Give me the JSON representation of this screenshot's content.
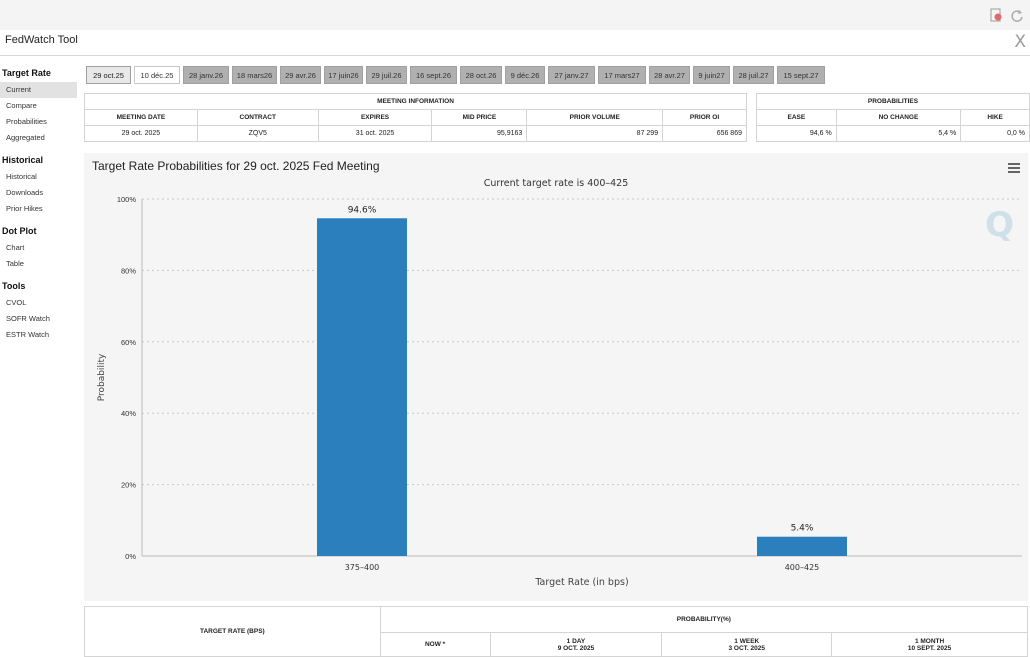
{
  "window": {
    "title": "FedWatch Tool",
    "close_glyph": "X"
  },
  "topbar_icons": [
    "export-icon",
    "refresh-icon"
  ],
  "sidebar": {
    "sections": [
      {
        "title": "Target Rate",
        "items": [
          "Current",
          "Compare",
          "Probabilities",
          "Aggregated"
        ]
      },
      {
        "title": "Historical",
        "items": [
          "Historical",
          "Downloads",
          "Prior Hikes"
        ]
      },
      {
        "title": "Dot Plot",
        "items": [
          "Chart",
          "Table"
        ]
      },
      {
        "title": "Tools",
        "items": [
          "CVOL",
          "SOFR Watch",
          "ESTR Watch"
        ]
      }
    ],
    "active_item": "Current"
  },
  "tabs": [
    "29 oct.25",
    "10 déc.25",
    "28 janv.26",
    "18 mars26",
    "29 avr.26",
    "17 juin26",
    "29 juil.26",
    "16 sept.26",
    "28 oct.26",
    "9 déc.26",
    "27 janv.27",
    "17 mars27",
    "28 avr.27",
    "9 juin27",
    "28 juil.27",
    "15 sept.27"
  ],
  "meeting_info": {
    "title": "MEETING INFORMATION",
    "headers": [
      "MEETING DATE",
      "CONTRACT",
      "EXPIRES",
      "MID PRICE",
      "PRIOR VOLUME",
      "PRIOR OI"
    ],
    "row": [
      "29 oct. 2025",
      "ZQV5",
      "31 oct. 2025",
      "95,9163",
      "87 299",
      "656 869"
    ]
  },
  "probabilities": {
    "title": "PROBABILITIES",
    "headers": [
      "EASE",
      "NO CHANGE",
      "HIKE"
    ],
    "row": [
      "94,6 %",
      "5,4 %",
      "0,0 %"
    ]
  },
  "chart_data": {
    "type": "bar",
    "title": "Target Rate Probabilities for 29 oct. 2025 Fed Meeting",
    "subtitle": "Current target rate is 400–425",
    "xlabel": "Target Rate (in bps)",
    "ylabel": "Probability",
    "categories": [
      "375–400",
      "400–425"
    ],
    "values": [
      94.6,
      5.4
    ],
    "data_labels": [
      "94.6%",
      "5.4%"
    ],
    "ylim": [
      0,
      100
    ],
    "yticks": [
      0,
      20,
      40,
      60,
      80,
      100
    ],
    "ytick_labels": [
      "0%",
      "20%",
      "40%",
      "60%",
      "80%",
      "100%"
    ],
    "grid": true,
    "bar_color": "#2b7fbc"
  },
  "bottom_table": {
    "left_header": "TARGET RATE (BPS)",
    "prob_header": "PROBABILITY(%)",
    "cols": [
      {
        "label": "NOW *",
        "date": ""
      },
      {
        "label": "1 DAY",
        "date": "9 OCT. 2025"
      },
      {
        "label": "1 WEEK",
        "date": "3 OCT. 2025"
      },
      {
        "label": "1 MONTH",
        "date": "10 SEPT. 2025"
      }
    ]
  }
}
